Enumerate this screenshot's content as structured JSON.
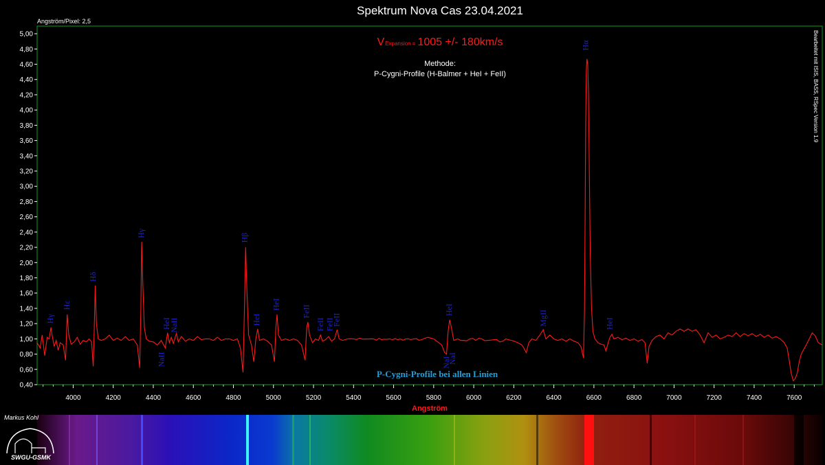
{
  "chart_data": {
    "type": "line",
    "title": "Spektrum Nova Cas 23.04.2021",
    "scale_note": "Angström/Pixel: 2,5",
    "software_note": "Bearbeitet mit ISIS, BASS, RSpec Version 1.9",
    "xlabel": "Angström",
    "ylabel": "",
    "xlim": [
      3820,
      7740
    ],
    "ylim": [
      0.4,
      5.1
    ],
    "x_ticks": [
      "4000",
      "4200",
      "4400",
      "4600",
      "4800",
      "5000",
      "5200",
      "5400",
      "5600",
      "5800",
      "6000",
      "6200",
      "6400",
      "6600",
      "6800",
      "7000",
      "7200",
      "7400",
      "7600"
    ],
    "y_ticks": [
      "0,40",
      "0,60",
      "0,80",
      "1,00",
      "1,20",
      "1,40",
      "1,60",
      "1,80",
      "2,00",
      "2,20",
      "2,40",
      "2,60",
      "2,80",
      "3,00",
      "3,20",
      "3,40",
      "3,60",
      "3,80",
      "4,00",
      "4,20",
      "4,40",
      "4,60",
      "4,80",
      "5,00"
    ],
    "series": [
      {
        "color": "#ff1a1a",
        "points": [
          [
            3820,
            0.95
          ],
          [
            3835,
            0.88
          ],
          [
            3845,
            1.05
          ],
          [
            3858,
            0.78
          ],
          [
            3870,
            1.02
          ],
          [
            3880,
            1.0
          ],
          [
            3889,
            1.15
          ],
          [
            3895,
            1.05
          ],
          [
            3905,
            0.9
          ],
          [
            3915,
            0.98
          ],
          [
            3925,
            0.85
          ],
          [
            3935,
            0.95
          ],
          [
            3950,
            0.92
          ],
          [
            3962,
            0.72
          ],
          [
            3970,
            1.32
          ],
          [
            3978,
            1.05
          ],
          [
            3990,
            0.93
          ],
          [
            4005,
            0.96
          ],
          [
            4020,
            1.02
          ],
          [
            4035,
            0.93
          ],
          [
            4050,
            0.98
          ],
          [
            4065,
            0.96
          ],
          [
            4080,
            1.0
          ],
          [
            4092,
            0.96
          ],
          [
            4100,
            0.64
          ],
          [
            4105,
            1.1
          ],
          [
            4110,
            1.7
          ],
          [
            4116,
            1.2
          ],
          [
            4125,
            1.0
          ],
          [
            4140,
            0.98
          ],
          [
            4160,
            1.0
          ],
          [
            4180,
            1.05
          ],
          [
            4200,
            0.98
          ],
          [
            4220,
            1.01
          ],
          [
            4240,
            0.98
          ],
          [
            4260,
            1.03
          ],
          [
            4280,
            0.98
          ],
          [
            4300,
            1.0
          ],
          [
            4320,
            0.92
          ],
          [
            4332,
            0.62
          ],
          [
            4338,
            1.4
          ],
          [
            4342,
            2.27
          ],
          [
            4348,
            1.7
          ],
          [
            4355,
            1.15
          ],
          [
            4365,
            1.0
          ],
          [
            4380,
            0.97
          ],
          [
            4400,
            0.96
          ],
          [
            4420,
            0.92
          ],
          [
            4440,
            0.98
          ],
          [
            4460,
            0.88
          ],
          [
            4471,
            1.08
          ],
          [
            4480,
            0.95
          ],
          [
            4490,
            1.02
          ],
          [
            4500,
            0.94
          ],
          [
            4515,
            1.07
          ],
          [
            4525,
            0.96
          ],
          [
            4540,
            1.03
          ],
          [
            4560,
            0.97
          ],
          [
            4580,
            1.0
          ],
          [
            4600,
            0.98
          ],
          [
            4620,
            1.03
          ],
          [
            4640,
            0.99
          ],
          [
            4660,
            1.0
          ],
          [
            4680,
            1.0
          ],
          [
            4700,
            0.98
          ],
          [
            4720,
            1.02
          ],
          [
            4740,
            0.98
          ],
          [
            4760,
            1.0
          ],
          [
            4780,
            1.0
          ],
          [
            4800,
            0.98
          ],
          [
            4820,
            1.0
          ],
          [
            4835,
            0.88
          ],
          [
            4848,
            0.56
          ],
          [
            4856,
            1.5
          ],
          [
            4861,
            2.2
          ],
          [
            4868,
            1.6
          ],
          [
            4876,
            1.05
          ],
          [
            4890,
            0.92
          ],
          [
            4902,
            0.7
          ],
          [
            4912,
            1.0
          ],
          [
            4921,
            1.13
          ],
          [
            4930,
            0.98
          ],
          [
            4950,
            1.0
          ],
          [
            4970,
            0.97
          ],
          [
            4990,
            0.92
          ],
          [
            5005,
            0.7
          ],
          [
            5012,
            1.15
          ],
          [
            5018,
            1.32
          ],
          [
            5025,
            1.05
          ],
          [
            5040,
            0.98
          ],
          [
            5060,
            1.0
          ],
          [
            5080,
            0.98
          ],
          [
            5100,
            1.0
          ],
          [
            5120,
            0.98
          ],
          [
            5140,
            0.92
          ],
          [
            5158,
            0.72
          ],
          [
            5166,
            1.15
          ],
          [
            5172,
            1.22
          ],
          [
            5180,
            1.05
          ],
          [
            5195,
            0.95
          ],
          [
            5210,
            1.0
          ],
          [
            5225,
            0.98
          ],
          [
            5235,
            1.05
          ],
          [
            5245,
            0.97
          ],
          [
            5260,
            0.99
          ],
          [
            5275,
            1.03
          ],
          [
            5290,
            0.97
          ],
          [
            5305,
            1.0
          ],
          [
            5318,
            1.12
          ],
          [
            5328,
            1.0
          ],
          [
            5345,
            0.98
          ],
          [
            5370,
            1.0
          ],
          [
            5400,
            1.0
          ],
          [
            5430,
            1.01
          ],
          [
            5460,
            1.0
          ],
          [
            5500,
            1.0
          ],
          [
            5540,
            0.99
          ],
          [
            5580,
            1.0
          ],
          [
            5620,
            0.99
          ],
          [
            5660,
            1.0
          ],
          [
            5700,
            1.0
          ],
          [
            5740,
            0.99
          ],
          [
            5770,
            1.02
          ],
          [
            5800,
            1.0
          ],
          [
            5820,
            0.96
          ],
          [
            5840,
            0.92
          ],
          [
            5855,
            0.82
          ],
          [
            5864,
            0.8
          ],
          [
            5872,
            1.1
          ],
          [
            5880,
            1.25
          ],
          [
            5888,
            1.15
          ],
          [
            5900,
            0.98
          ],
          [
            5920,
            1.0
          ],
          [
            5950,
            0.98
          ],
          [
            5980,
            1.0
          ],
          [
            6010,
            0.98
          ],
          [
            6040,
            1.0
          ],
          [
            6070,
            0.98
          ],
          [
            6100,
            0.99
          ],
          [
            6130,
            0.96
          ],
          [
            6160,
            1.0
          ],
          [
            6190,
            0.98
          ],
          [
            6220,
            0.95
          ],
          [
            6240,
            0.92
          ],
          [
            6262,
            0.82
          ],
          [
            6275,
            0.95
          ],
          [
            6290,
            1.0
          ],
          [
            6310,
            0.98
          ],
          [
            6330,
            1.05
          ],
          [
            6347,
            1.12
          ],
          [
            6360,
            1.0
          ],
          [
            6380,
            1.05
          ],
          [
            6400,
            1.0
          ],
          [
            6420,
            0.98
          ],
          [
            6440,
            1.0
          ],
          [
            6460,
            0.97
          ],
          [
            6480,
            1.0
          ],
          [
            6500,
            0.97
          ],
          [
            6520,
            0.95
          ],
          [
            6535,
            0.9
          ],
          [
            6548,
            0.75
          ],
          [
            6553,
            1.4
          ],
          [
            6556,
            2.6
          ],
          [
            6559,
            3.8
          ],
          [
            6562,
            4.5
          ],
          [
            6565,
            4.67
          ],
          [
            6569,
            4.6
          ],
          [
            6573,
            4.2
          ],
          [
            6577,
            3.2
          ],
          [
            6582,
            2.1
          ],
          [
            6588,
            1.4
          ],
          [
            6595,
            1.1
          ],
          [
            6605,
            1.0
          ],
          [
            6620,
            0.95
          ],
          [
            6635,
            0.93
          ],
          [
            6650,
            0.92
          ],
          [
            6660,
            0.84
          ],
          [
            6672,
            0.96
          ],
          [
            6680,
            1.02
          ],
          [
            6690,
            1.06
          ],
          [
            6700,
            1.0
          ],
          [
            6720,
            1.02
          ],
          [
            6740,
            0.99
          ],
          [
            6760,
            1.01
          ],
          [
            6780,
            0.98
          ],
          [
            6800,
            1.0
          ],
          [
            6820,
            0.97
          ],
          [
            6840,
            0.99
          ],
          [
            6855,
            0.95
          ],
          [
            6866,
            0.68
          ],
          [
            6875,
            0.9
          ],
          [
            6890,
            0.98
          ],
          [
            6910,
            1.03
          ],
          [
            6930,
            1.05
          ],
          [
            6950,
            1.0
          ],
          [
            6970,
            1.08
          ],
          [
            6990,
            1.05
          ],
          [
            7010,
            1.1
          ],
          [
            7030,
            1.13
          ],
          [
            7050,
            1.1
          ],
          [
            7070,
            1.13
          ],
          [
            7090,
            1.1
          ],
          [
            7110,
            1.12
          ],
          [
            7130,
            1.05
          ],
          [
            7150,
            0.95
          ],
          [
            7170,
            1.08
          ],
          [
            7190,
            1.02
          ],
          [
            7210,
            1.05
          ],
          [
            7230,
            1.0
          ],
          [
            7250,
            1.02
          ],
          [
            7270,
            1.05
          ],
          [
            7290,
            1.03
          ],
          [
            7310,
            1.08
          ],
          [
            7330,
            1.03
          ],
          [
            7350,
            1.07
          ],
          [
            7370,
            1.04
          ],
          [
            7390,
            1.07
          ],
          [
            7410,
            1.03
          ],
          [
            7430,
            1.06
          ],
          [
            7450,
            1.02
          ],
          [
            7470,
            1.05
          ],
          [
            7490,
            1.01
          ],
          [
            7510,
            1.03
          ],
          [
            7530,
            1.0
          ],
          [
            7550,
            0.95
          ],
          [
            7565,
            0.88
          ],
          [
            7575,
            0.72
          ],
          [
            7585,
            0.55
          ],
          [
            7595,
            0.45
          ],
          [
            7605,
            0.48
          ],
          [
            7615,
            0.55
          ],
          [
            7625,
            0.7
          ],
          [
            7635,
            0.8
          ],
          [
            7645,
            0.85
          ],
          [
            7660,
            0.92
          ],
          [
            7675,
            1.0
          ],
          [
            7690,
            1.08
          ],
          [
            7705,
            1.04
          ],
          [
            7720,
            0.95
          ],
          [
            7740,
            0.92
          ]
        ]
      }
    ],
    "line_labels": [
      {
        "text": "Hγ",
        "x": 3885,
        "y": 1.2,
        "note": "Hε"
      },
      {
        "text": "Hε",
        "x": 3968,
        "y": 1.38
      },
      {
        "text": "Hδ",
        "x": 4098,
        "y": 1.75
      },
      {
        "text": "Hγ",
        "x": 4338,
        "y": 2.32
      },
      {
        "text": "HeI",
        "x": 4466,
        "y": 1.12
      },
      {
        "text": "NaII",
        "x": 4503,
        "y": 1.08
      },
      {
        "text": "NaII",
        "x": 4440,
        "y": 0.63
      },
      {
        "text": "Hβ",
        "x": 4855,
        "y": 2.26
      },
      {
        "text": "HeI",
        "x": 4915,
        "y": 1.17
      },
      {
        "text": "HeI",
        "x": 5013,
        "y": 1.37
      },
      {
        "text": "FeII",
        "x": 5163,
        "y": 1.27
      },
      {
        "text": "FeII",
        "x": 5235,
        "y": 1.1
      },
      {
        "text": "FeII",
        "x": 5280,
        "y": 1.1
      },
      {
        "text": "FeII",
        "x": 5315,
        "y": 1.16
      },
      {
        "text": "HeI",
        "x": 5876,
        "y": 1.3
      },
      {
        "text": "NaI",
        "x": 5862,
        "y": 0.61
      },
      {
        "text": "NaI",
        "x": 5893,
        "y": 0.66
      },
      {
        "text": "MgII",
        "x": 6347,
        "y": 1.16
      },
      {
        "text": "Hα",
        "x": 6558,
        "y": 4.78
      },
      {
        "text": "HeI",
        "x": 6678,
        "y": 1.12
      }
    ],
    "annotations": {
      "vexp_prefix": "V",
      "vexp_sub": "Expansion =",
      "vexp_value": "1005 +/- 180km/s",
      "method_title": "Methode:",
      "method_text": "P-Cygni-Profile (H-Balmer + HeI + FeII)",
      "pcygni_note": "P-Cygni-Profile bei allen Linien"
    },
    "grid": false
  },
  "footer": {
    "author": "Markus Kohl",
    "logo_text": "SWGU-GSMK"
  },
  "colors": {
    "spectrum": "#ff1a1a",
    "frame": "#0fa020",
    "labels": "#1f22c8",
    "note": "#1f9fd8"
  }
}
